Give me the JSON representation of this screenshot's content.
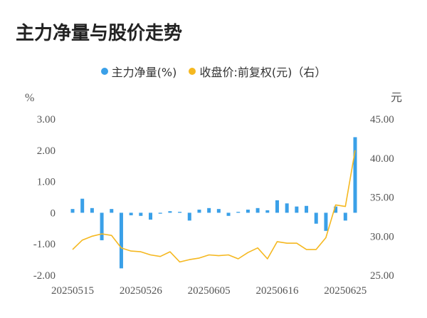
{
  "page": {
    "title": "主力净量与股价走势"
  },
  "colors": {
    "bar": "#3aa0e8",
    "line": "#f5b820",
    "axis_text": "#555555",
    "title": "#222222"
  },
  "legend": {
    "items": [
      {
        "label": "主力净量(%)",
        "color": "#3aa0e8"
      },
      {
        "label": "收盘价:前复权(元)（右）",
        "color": "#f5b820"
      }
    ]
  },
  "chart_data": {
    "type": "bar+line",
    "left_axis": {
      "unit": "%",
      "ticks": [
        "3.00",
        "2.00",
        "1.00",
        "0",
        "-1.00",
        "-2.00"
      ],
      "range": [
        -2,
        3
      ]
    },
    "right_axis": {
      "unit": "元",
      "ticks": [
        "45.00",
        "40.00",
        "35.00",
        "30.00",
        "25.00"
      ],
      "range": [
        25,
        45
      ]
    },
    "x_tick_labels": [
      "20250515",
      "20250526",
      "20250605",
      "20250616",
      "20250625"
    ],
    "x_tick_indices": [
      0,
      7,
      14,
      21,
      28
    ],
    "series": [
      {
        "name": "主力净量(%)",
        "type": "bar",
        "axis": "left",
        "values": [
          0.12,
          0.45,
          0.15,
          -0.88,
          0.12,
          -1.78,
          -0.08,
          -0.1,
          -0.22,
          -0.03,
          0.05,
          0.03,
          -0.25,
          0.1,
          0.15,
          0.12,
          -0.1,
          0.03,
          0.1,
          0.15,
          0.08,
          0.4,
          0.3,
          0.2,
          0.22,
          -0.35,
          -0.58,
          0.2,
          -0.25,
          2.42
        ]
      },
      {
        "name": "收盘价:前复权(元)（右）",
        "type": "line",
        "axis": "right",
        "values": [
          28.3,
          29.5,
          30.0,
          30.3,
          30.1,
          28.5,
          28.1,
          28.0,
          27.6,
          27.4,
          28.0,
          26.7,
          27.0,
          27.2,
          27.6,
          27.5,
          27.6,
          27.1,
          27.9,
          28.5,
          27.1,
          29.3,
          29.1,
          29.1,
          28.3,
          28.3,
          29.8,
          34.0,
          33.8,
          41.0
        ]
      }
    ]
  }
}
